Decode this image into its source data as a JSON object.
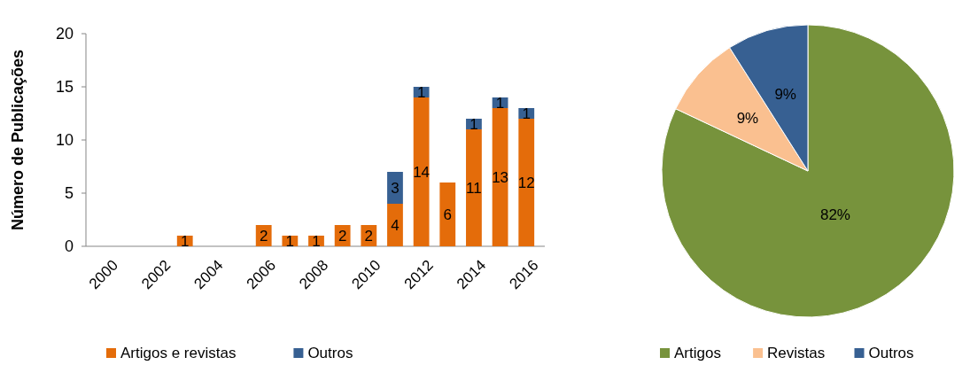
{
  "chart_data": [
    {
      "type": "bar",
      "stacked": true,
      "ylabel": "Número de Publicações",
      "categories": [
        "2000",
        null,
        "2002",
        null,
        "2004",
        null,
        "2006",
        null,
        "2008",
        null,
        "2010",
        null,
        "2012",
        null,
        "2014",
        null,
        "2016"
      ],
      "series": [
        {
          "name": "Artigos e revistas",
          "color": "#e46c0a",
          "values": [
            null,
            null,
            null,
            1,
            null,
            null,
            2,
            1,
            1,
            2,
            2,
            4,
            14,
            6,
            11,
            13,
            12
          ]
        },
        {
          "name": "Outros",
          "color": "#376092",
          "values": [
            null,
            null,
            null,
            null,
            null,
            null,
            null,
            null,
            null,
            null,
            null,
            3,
            1,
            null,
            1,
            1,
            1
          ]
        }
      ],
      "ylim": [
        0,
        20
      ],
      "yticks": [
        0,
        5,
        10,
        15,
        20
      ],
      "legend": "bottom",
      "data_labels": true
    },
    {
      "type": "pie",
      "categories": [
        "Artigos",
        "Revistas",
        "Outros"
      ],
      "values": [
        82,
        9,
        9
      ],
      "colors": [
        "#77933c",
        "#fac090",
        "#376092"
      ],
      "value_labels": [
        "82%",
        "9%",
        "9%"
      ],
      "legend": "bottom"
    }
  ]
}
